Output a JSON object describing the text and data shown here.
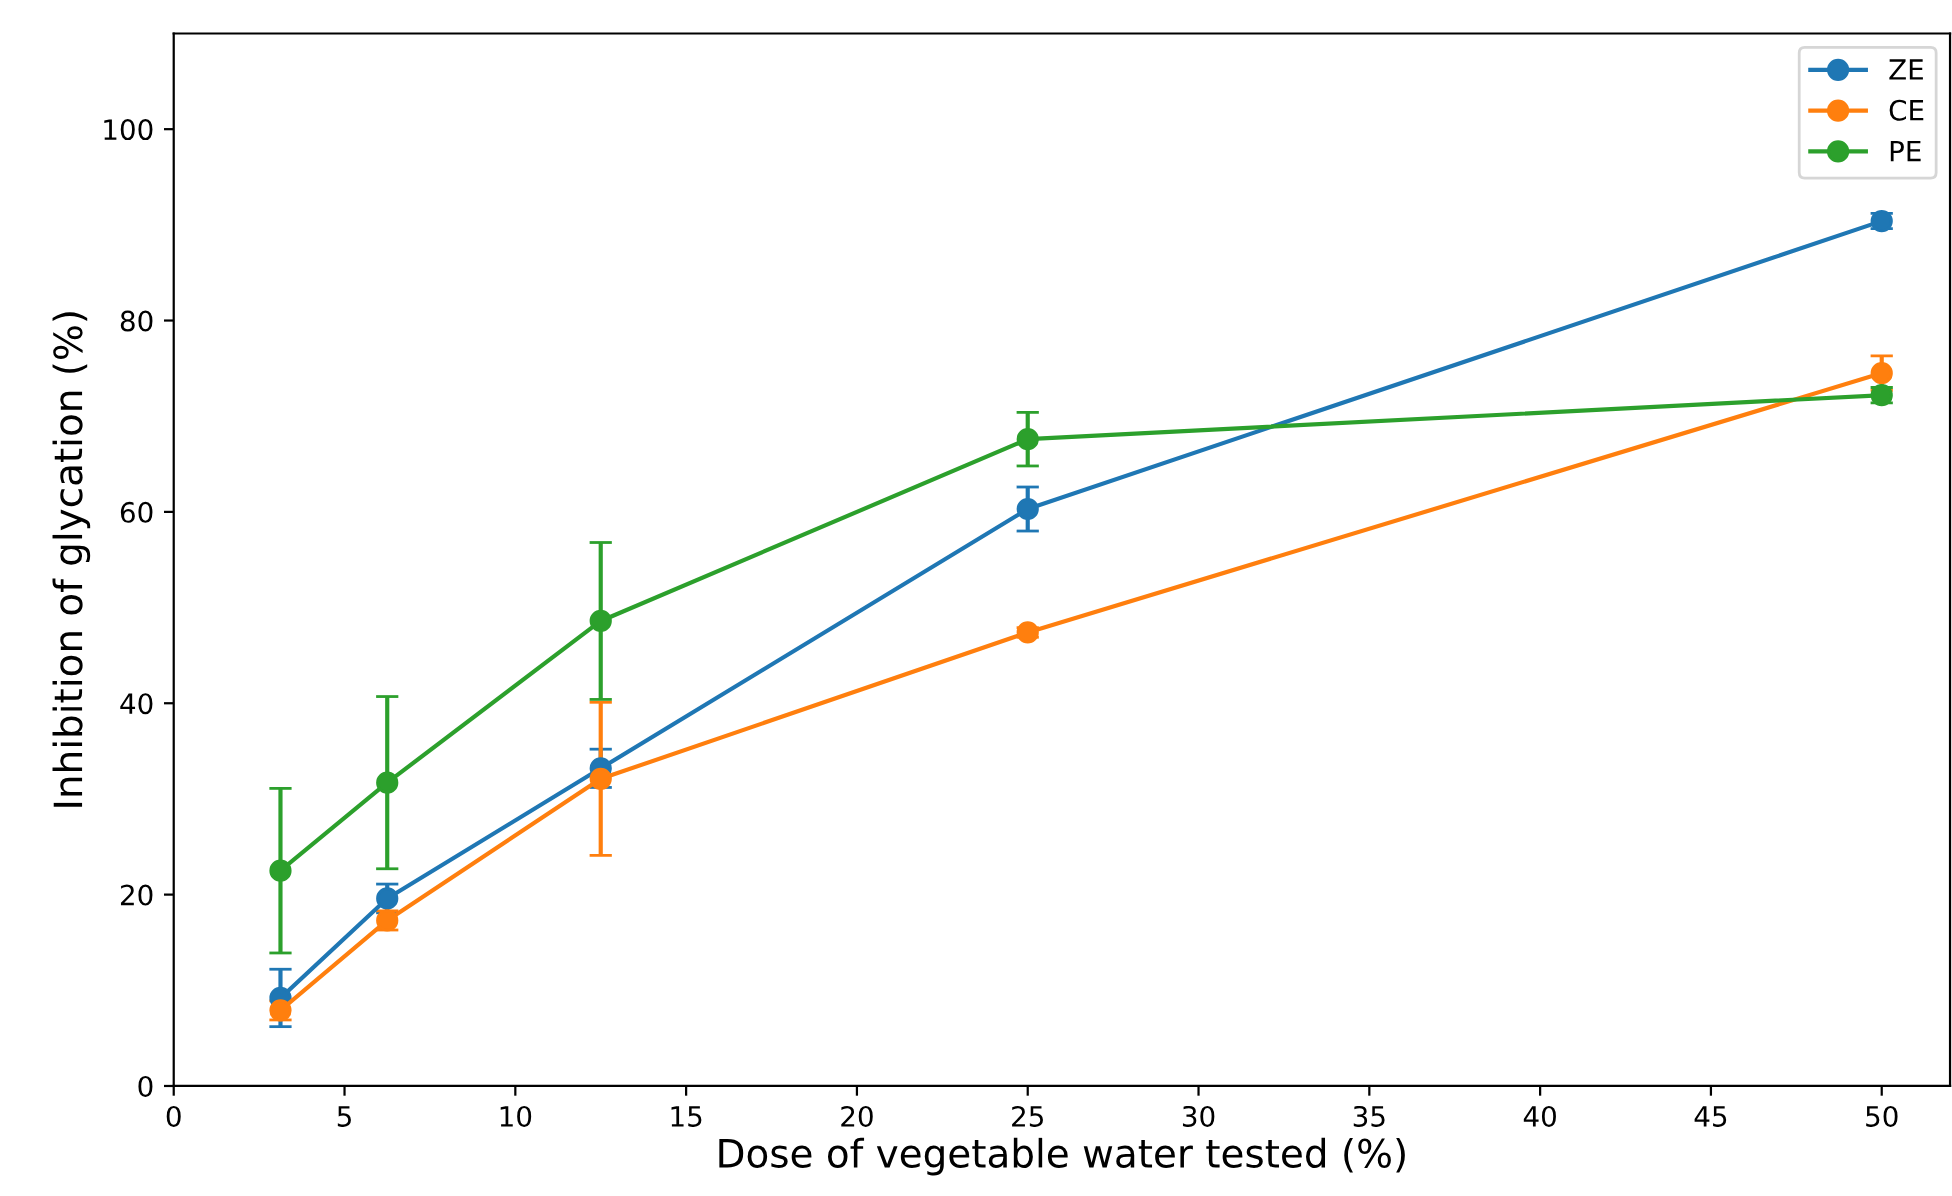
{
  "chart_data": {
    "type": "line",
    "xlabel": "Dose of vegetable water tested (%)",
    "ylabel": "Inhibition of glycation (%)",
    "x": [
      3.125,
      6.25,
      12.5,
      25,
      50
    ],
    "series": [
      {
        "name": "ZE",
        "color": "#1f77b4",
        "values": [
          9.2,
          19.6,
          33.2,
          60.3,
          90.4
        ],
        "errors": [
          3,
          1.5,
          2,
          2.3,
          0.8
        ]
      },
      {
        "name": "CE",
        "color": "#ff7f0e",
        "values": [
          7.9,
          17.3,
          32.1,
          47.4,
          74.5
        ],
        "errors": [
          1,
          1,
          8,
          0.5,
          1.8
        ]
      },
      {
        "name": "PE",
        "color": "#2ca02c",
        "values": [
          22.5,
          31.7,
          48.6,
          67.6,
          72.2
        ],
        "errors": [
          8.6,
          9,
          8.2,
          2.8,
          0.8
        ]
      }
    ],
    "xlim": [
      0,
      52
    ],
    "xticks": [
      0,
      5,
      10,
      15,
      20,
      25,
      30,
      35,
      40,
      45,
      50
    ],
    "ylim": [
      0,
      110
    ],
    "yticks": [
      0,
      20,
      40,
      60,
      80,
      100
    ],
    "marker": "circle",
    "line_style": "solid",
    "legend": "top right",
    "grid": false
  }
}
